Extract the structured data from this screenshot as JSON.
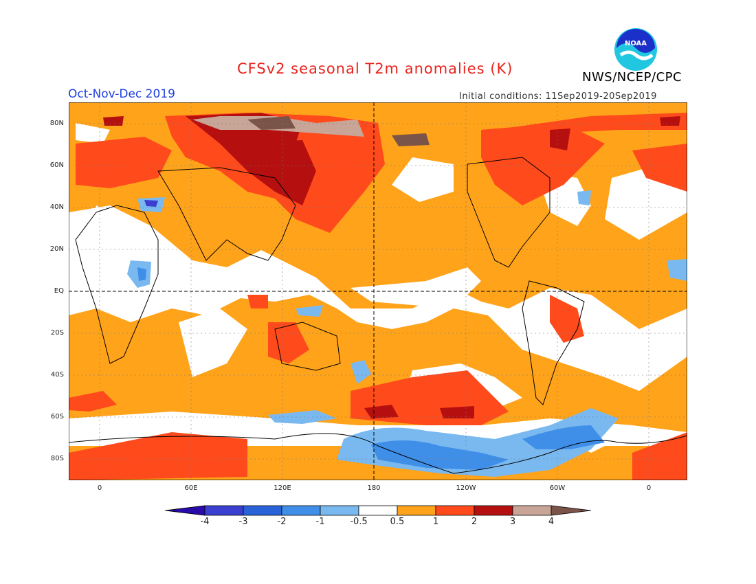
{
  "header": {
    "title": "CFSv2 seasonal T2m anomalies (K)",
    "season": "Oct-Nov-Dec 2019",
    "initial_conditions": "Initial conditions: 11Sep2019-20Sep2019",
    "agency": "NWS/NCEP/CPC",
    "logo_text": "NOAA"
  },
  "map": {
    "lat_labels": [
      "80N",
      "60N",
      "40N",
      "20N",
      "EQ",
      "20S",
      "40S",
      "60S",
      "80S"
    ],
    "lon_labels": [
      "0",
      "60E",
      "120E",
      "180",
      "120W",
      "60W",
      "0"
    ]
  },
  "colorbar": {
    "labels": [
      "-4",
      "-3",
      "-2",
      "-1",
      "-0.5",
      "0.5",
      "1",
      "2",
      "3",
      "4"
    ],
    "colors": [
      "#2a0aa8",
      "#3a3fd0",
      "#2a63d8",
      "#3f8fe8",
      "#79b9f0",
      "#ffffff",
      "#ffa31a",
      "#ff4a1c",
      "#b50f0f",
      "#c8a596",
      "#7a5448"
    ]
  }
}
